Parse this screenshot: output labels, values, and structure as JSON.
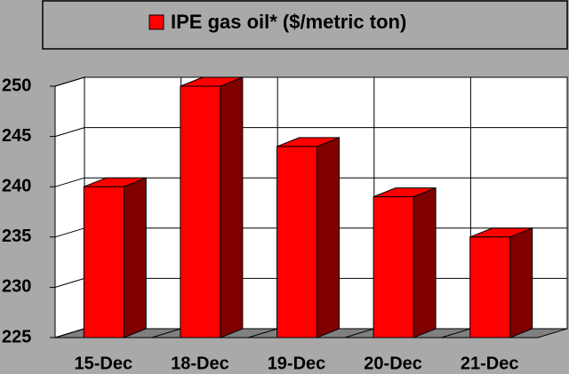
{
  "chart_data": {
    "type": "bar",
    "title": "IPE gas oil* ($/metric ton)",
    "categories": [
      "15-Dec",
      "18-Dec",
      "19-Dec",
      "20-Dec",
      "21-Dec"
    ],
    "series": [
      {
        "name": "IPE gas oil* ($/metric ton)",
        "color": "#ff0000",
        "values": [
          240,
          250,
          244,
          239,
          235
        ]
      }
    ],
    "ylim": [
      225,
      250
    ],
    "yticks": [
      225,
      230,
      235,
      240,
      245,
      250
    ],
    "grid": true
  }
}
